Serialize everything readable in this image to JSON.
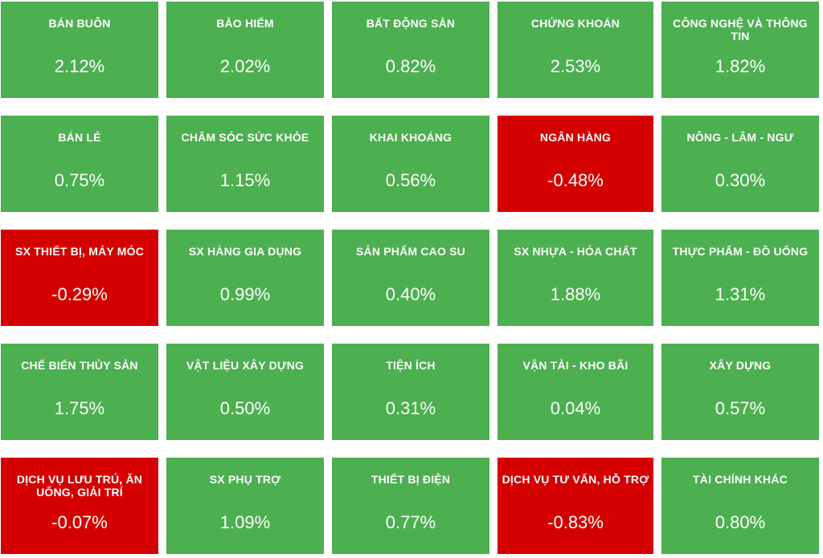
{
  "colors": {
    "positive": "#4caf50",
    "negative": "#d40000",
    "text": "#ffffff"
  },
  "sectors": [
    {
      "name": "BÁN BUÔN",
      "change": "2.12%"
    },
    {
      "name": "BẢO HIỂM",
      "change": "2.02%"
    },
    {
      "name": "BẤT ĐỘNG SẢN",
      "change": "0.82%"
    },
    {
      "name": "CHỨNG KHOÁN",
      "change": "2.53%"
    },
    {
      "name": "CÔNG NGHỆ VÀ THÔNG TIN",
      "change": "1.82%"
    },
    {
      "name": "BÁN LẺ",
      "change": "0.75%"
    },
    {
      "name": "CHĂM SÓC SỨC KHỎE",
      "change": "1.15%"
    },
    {
      "name": "KHAI KHOÁNG",
      "change": "0.56%"
    },
    {
      "name": "NGÂN HÀNG",
      "change": "-0.48%"
    },
    {
      "name": "NÔNG - LÂM - NGƯ",
      "change": "0.30%"
    },
    {
      "name": "SX THIẾT BỊ, MÁY MÓC",
      "change": "-0.29%"
    },
    {
      "name": "SX HÀNG GIA DỤNG",
      "change": "0.99%"
    },
    {
      "name": "SẢN PHẨM CAO SU",
      "change": "0.40%"
    },
    {
      "name": "SX NHỰA - HÓA CHẤT",
      "change": "1.88%"
    },
    {
      "name": "THỰC PHẨM - ĐỒ UỐNG",
      "change": "1.31%"
    },
    {
      "name": "CHẾ BIẾN THỦY SẢN",
      "change": "1.75%"
    },
    {
      "name": "VẬT LIỆU XÂY DỰNG",
      "change": "0.50%"
    },
    {
      "name": "TIỆN ÍCH",
      "change": "0.31%"
    },
    {
      "name": "VẬN TẢI - KHO BÃI",
      "change": "0.04%"
    },
    {
      "name": "XÂY DỰNG",
      "change": "0.57%"
    },
    {
      "name": "DỊCH VỤ LƯU TRÚ, ĂN UỐNG, GIẢI TRÍ",
      "change": "-0.07%"
    },
    {
      "name": "SX PHỤ TRỢ",
      "change": "1.09%"
    },
    {
      "name": "THIẾT BỊ ĐIỆN",
      "change": "0.77%"
    },
    {
      "name": "DỊCH VỤ TƯ VẤN, HỖ TRỢ",
      "change": "-0.83%"
    },
    {
      "name": "TÀI CHÍNH KHÁC",
      "change": "0.80%"
    }
  ]
}
